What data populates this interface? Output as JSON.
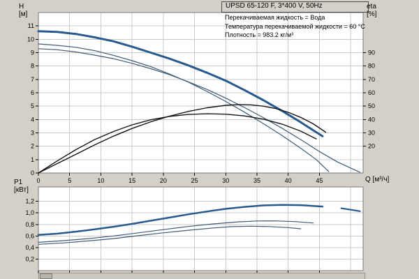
{
  "axis_labels": {
    "h": "H\n[м]",
    "eta": "eta\n[%]",
    "q": "Q [м³/ч]",
    "p1": "P1\n[кВт]"
  },
  "colors": {
    "background": "#d4d0c8",
    "plot_bg": "#ffffff",
    "grid": "#c9c9c9",
    "frame": "#7a7a7a",
    "curve_main": "#28598e",
    "curve_thin": "#3d5a78",
    "curve_eta": "#141414"
  },
  "chart_data": [
    {
      "id": "head-chart",
      "type": "line",
      "title": "UPSD 65-120 F, 3*400 V, 50Hz",
      "annotations": [
        "Перекачиваемая жидкость = Вода",
        "Температура перекачиваемой жидкости = 60 °C",
        "Плотность = 983.2 кг/м³"
      ],
      "xlabel": "Q [м³/ч]",
      "ylabel": "H [м]",
      "y2label": "eta [%]",
      "xlim": [
        0,
        52
      ],
      "ylim": [
        0,
        12
      ],
      "y2lim": [
        0,
        120
      ],
      "x_ticks": [
        0,
        5,
        10,
        15,
        20,
        25,
        30,
        35,
        40,
        45
      ],
      "x_grid": [
        5,
        10,
        15,
        20,
        25,
        30,
        35,
        40,
        45,
        50
      ],
      "y_ticks": [
        0,
        1,
        2,
        3,
        4,
        5,
        6,
        7,
        8,
        9,
        10,
        11
      ],
      "y2_ticks": [
        20,
        30,
        40,
        50,
        60,
        70,
        80,
        90
      ],
      "grid": true,
      "legend": "none",
      "series": [
        {
          "name": "H both pumps",
          "axis": "y",
          "color": "#28598e",
          "width": 3,
          "points": [
            [
              0,
              10.6
            ],
            [
              3,
              10.55
            ],
            [
              6,
              10.4
            ],
            [
              9,
              10.15
            ],
            [
              12,
              9.85
            ],
            [
              15,
              9.45
            ],
            [
              18,
              9.0
            ],
            [
              21,
              8.55
            ],
            [
              24,
              8.05
            ],
            [
              27,
              7.5
            ],
            [
              30,
              6.9
            ],
            [
              33,
              6.2
            ],
            [
              36,
              5.45
            ],
            [
              39,
              4.65
            ],
            [
              42,
              3.8
            ],
            [
              44,
              3.2
            ],
            [
              45.5,
              2.75
            ]
          ]
        },
        {
          "name": "H single pump A",
          "axis": "y",
          "color": "#3d5a78",
          "width": 1.2,
          "points": [
            [
              0,
              9.65
            ],
            [
              3,
              9.55
            ],
            [
              6,
              9.4
            ],
            [
              9,
              9.15
            ],
            [
              12,
              8.8
            ],
            [
              15,
              8.4
            ],
            [
              18,
              7.95
            ],
            [
              21,
              7.4
            ],
            [
              24,
              6.8
            ],
            [
              27,
              6.1
            ],
            [
              30,
              5.35
            ],
            [
              33,
              4.55
            ],
            [
              36,
              3.7
            ],
            [
              39,
              2.8
            ],
            [
              42,
              1.85
            ],
            [
              44.5,
              1.0
            ],
            [
              46.5,
              0.1
            ]
          ]
        },
        {
          "name": "H single pump B",
          "axis": "y",
          "color": "#3d5a78",
          "width": 1.2,
          "points": [
            [
              0,
              9.3
            ],
            [
              3,
              9.22
            ],
            [
              6,
              9.05
            ],
            [
              9,
              8.82
            ],
            [
              12,
              8.55
            ],
            [
              15,
              8.2
            ],
            [
              18,
              7.8
            ],
            [
              21,
              7.35
            ],
            [
              24,
              6.82
            ],
            [
              27,
              6.25
            ],
            [
              30,
              5.6
            ],
            [
              33,
              4.9
            ],
            [
              36,
              4.15
            ],
            [
              39,
              3.35
            ],
            [
              42,
              2.5
            ],
            [
              45,
              1.6
            ],
            [
              48,
              0.8
            ],
            [
              51.5,
              0.05
            ]
          ]
        },
        {
          "name": "eta curve A",
          "axis": "y2",
          "color": "#141414",
          "width": 1.4,
          "points": [
            [
              0,
              0
            ],
            [
              3,
              9
            ],
            [
              6,
              17.5
            ],
            [
              9,
              25
            ],
            [
              12,
              31
            ],
            [
              15,
              36
            ],
            [
              18,
              39.8
            ],
            [
              21,
              42.3
            ],
            [
              24,
              43.8
            ],
            [
              27,
              44.3
            ],
            [
              30,
              44
            ],
            [
              33,
              42.7
            ],
            [
              36,
              40.3
            ],
            [
              39,
              36.6
            ],
            [
              42,
              31.3
            ],
            [
              44.5,
              25.5
            ]
          ]
        },
        {
          "name": "eta curve B",
          "axis": "y2",
          "color": "#141414",
          "width": 1.4,
          "points": [
            [
              0,
              0
            ],
            [
              3,
              7
            ],
            [
              6,
              14
            ],
            [
              9,
              21
            ],
            [
              12,
              27.5
            ],
            [
              15,
              33.3
            ],
            [
              18,
              38.3
            ],
            [
              21,
              42.5
            ],
            [
              24,
              46
            ],
            [
              27,
              48.8
            ],
            [
              30,
              50.6
            ],
            [
              32,
              51.2
            ],
            [
              34,
              51
            ],
            [
              36,
              50
            ],
            [
              38,
              48.2
            ],
            [
              40,
              45.4
            ],
            [
              42,
              41.6
            ],
            [
              44,
              36.8
            ],
            [
              46,
              30.5
            ]
          ]
        }
      ]
    },
    {
      "id": "power-chart",
      "type": "line",
      "title": "",
      "xlabel": "Q [м³/ч]",
      "ylabel": "P1 [кВт]",
      "xlim": [
        0,
        52
      ],
      "ylim": [
        0,
        1.45
      ],
      "x_ticks": [
        0,
        5,
        10,
        15,
        20,
        25,
        30,
        35,
        40,
        45
      ],
      "x_grid": [
        5,
        10,
        15,
        20,
        25,
        30,
        35,
        40,
        45,
        50
      ],
      "y_ticks": [
        0.2,
        0.4,
        0.6,
        0.8,
        1.0,
        1.2
      ],
      "y_tick_labels": [
        "0,2",
        "0,4",
        "0,6",
        "0,8",
        "1,0",
        "1,2"
      ],
      "grid": true,
      "legend": "none",
      "series": [
        {
          "name": "P1 both pumps",
          "axis": "y",
          "color": "#28598e",
          "width": 2.5,
          "points": [
            [
              0,
              0.62
            ],
            [
              3,
              0.64
            ],
            [
              6,
              0.675
            ],
            [
              9,
              0.715
            ],
            [
              12,
              0.76
            ],
            [
              15,
              0.81
            ],
            [
              18,
              0.865
            ],
            [
              21,
              0.92
            ],
            [
              24,
              0.975
            ],
            [
              27,
              1.025
            ],
            [
              30,
              1.07
            ],
            [
              33,
              1.105
            ],
            [
              36,
              1.13
            ],
            [
              39,
              1.14
            ],
            [
              42,
              1.135
            ],
            [
              44,
              1.12
            ],
            [
              45.5,
              1.11
            ]
          ]
        },
        {
          "name": "P1 single pump A",
          "axis": "y",
          "color": "#3d5a78",
          "width": 1.2,
          "points": [
            [
              0,
              0.49
            ],
            [
              4,
              0.52
            ],
            [
              8,
              0.555
            ],
            [
              12,
              0.6
            ],
            [
              16,
              0.655
            ],
            [
              20,
              0.71
            ],
            [
              24,
              0.765
            ],
            [
              28,
              0.81
            ],
            [
              32,
              0.845
            ],
            [
              35,
              0.86
            ],
            [
              38,
              0.862
            ],
            [
              41,
              0.85
            ],
            [
              44,
              0.825
            ]
          ]
        },
        {
          "name": "P1 single pump B",
          "axis": "y",
          "color": "#3d5a78",
          "width": 1.2,
          "points": [
            [
              0,
              0.455
            ],
            [
              4,
              0.48
            ],
            [
              8,
              0.515
            ],
            [
              12,
              0.555
            ],
            [
              16,
              0.605
            ],
            [
              20,
              0.655
            ],
            [
              24,
              0.7
            ],
            [
              28,
              0.74
            ],
            [
              31,
              0.762
            ],
            [
              34,
              0.77
            ],
            [
              37,
              0.764
            ],
            [
              40,
              0.745
            ],
            [
              42,
              0.725
            ]
          ]
        },
        {
          "name": "P1 end segment",
          "axis": "y",
          "color": "#28598e",
          "width": 2.2,
          "points": [
            [
              48.5,
              1.08
            ],
            [
              51.5,
              1.03
            ]
          ]
        }
      ]
    }
  ]
}
